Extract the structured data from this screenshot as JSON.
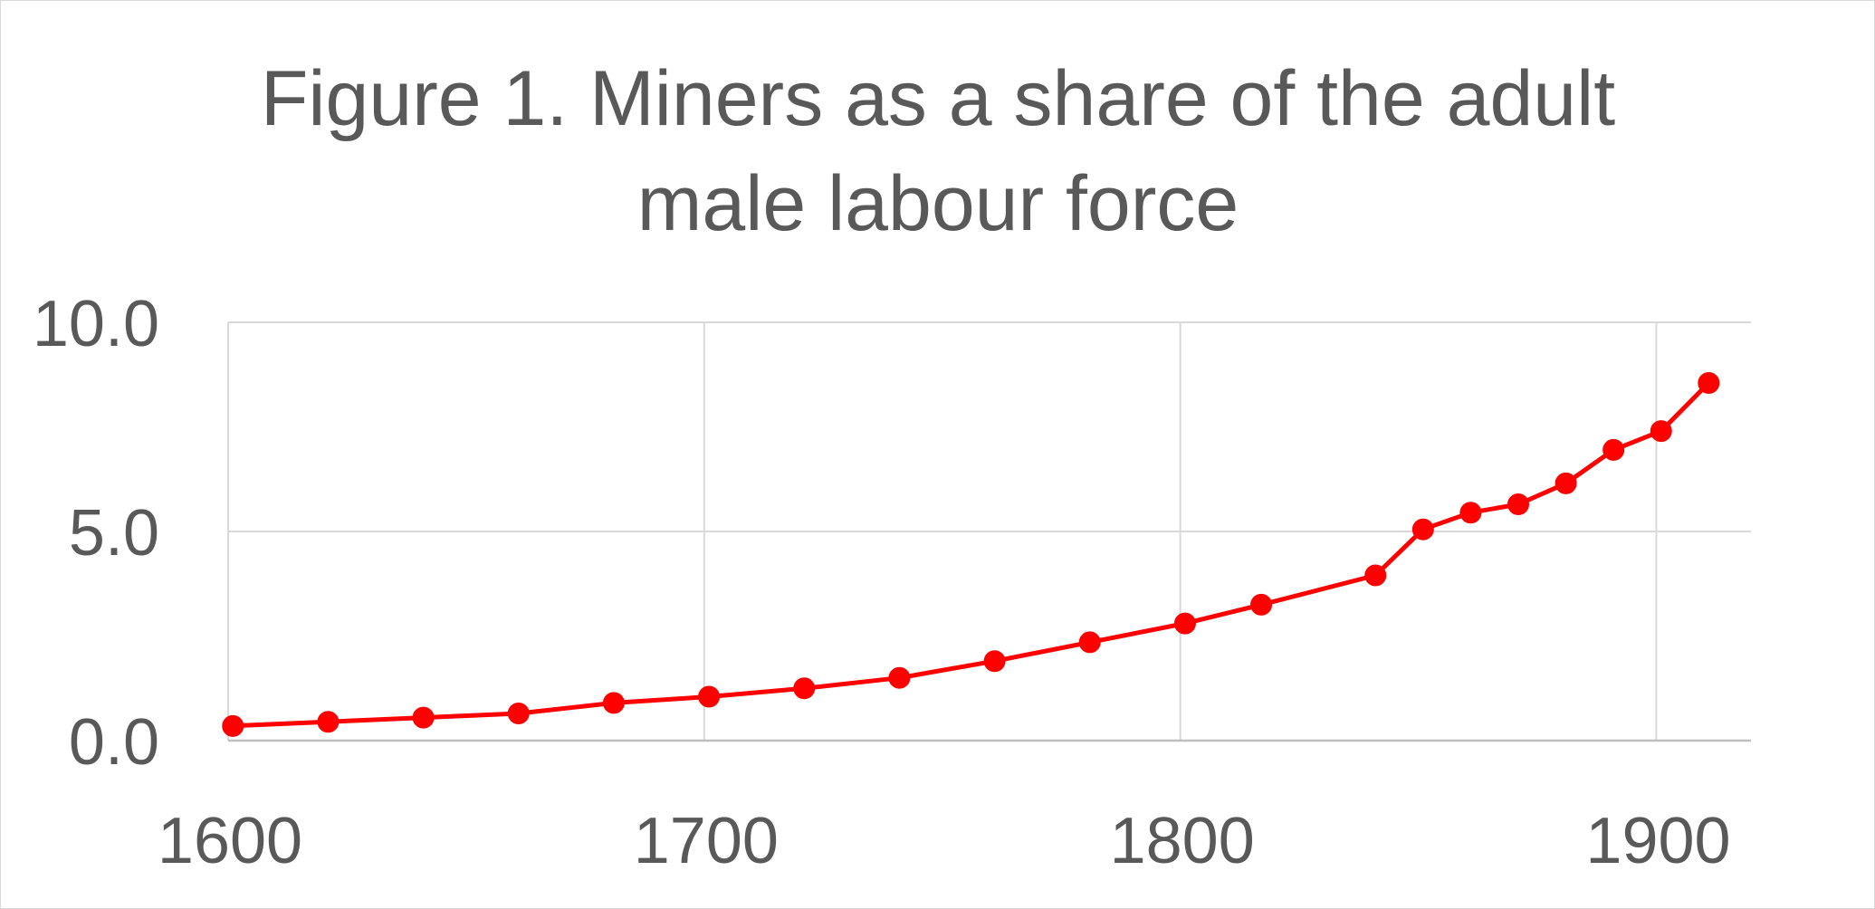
{
  "chart_data": {
    "type": "line",
    "title": "Figure 1. Miners as a share of the adult male labour force",
    "xlabel": "",
    "ylabel": "",
    "xlim": [
      1600,
      1920
    ],
    "ylim": [
      0,
      10
    ],
    "xticks": [
      1600,
      1700,
      1800,
      1900
    ],
    "xtick_labels": [
      "1600",
      "1700",
      "1800",
      "1900"
    ],
    "yticks": [
      0,
      5,
      10
    ],
    "ytick_labels": [
      "0.0",
      "5.0",
      "10.0"
    ],
    "grid": true,
    "legend": false,
    "series": [
      {
        "color": "#ff0000",
        "marker": "circle",
        "points": [
          {
            "x": 1601,
            "y": 0.35
          },
          {
            "x": 1621,
            "y": 0.45
          },
          {
            "x": 1641,
            "y": 0.55
          },
          {
            "x": 1661,
            "y": 0.65
          },
          {
            "x": 1681,
            "y": 0.9
          },
          {
            "x": 1701,
            "y": 1.05
          },
          {
            "x": 1721,
            "y": 1.25
          },
          {
            "x": 1741,
            "y": 1.5
          },
          {
            "x": 1761,
            "y": 1.9
          },
          {
            "x": 1781,
            "y": 2.35
          },
          {
            "x": 1801,
            "y": 2.8
          },
          {
            "x": 1817,
            "y": 3.25
          },
          {
            "x": 1841,
            "y": 3.95
          },
          {
            "x": 1851,
            "y": 5.05
          },
          {
            "x": 1861,
            "y": 5.45
          },
          {
            "x": 1871,
            "y": 5.65
          },
          {
            "x": 1881,
            "y": 6.15
          },
          {
            "x": 1891,
            "y": 6.95
          },
          {
            "x": 1901,
            "y": 7.4
          },
          {
            "x": 1911,
            "y": 8.55
          }
        ]
      }
    ]
  }
}
